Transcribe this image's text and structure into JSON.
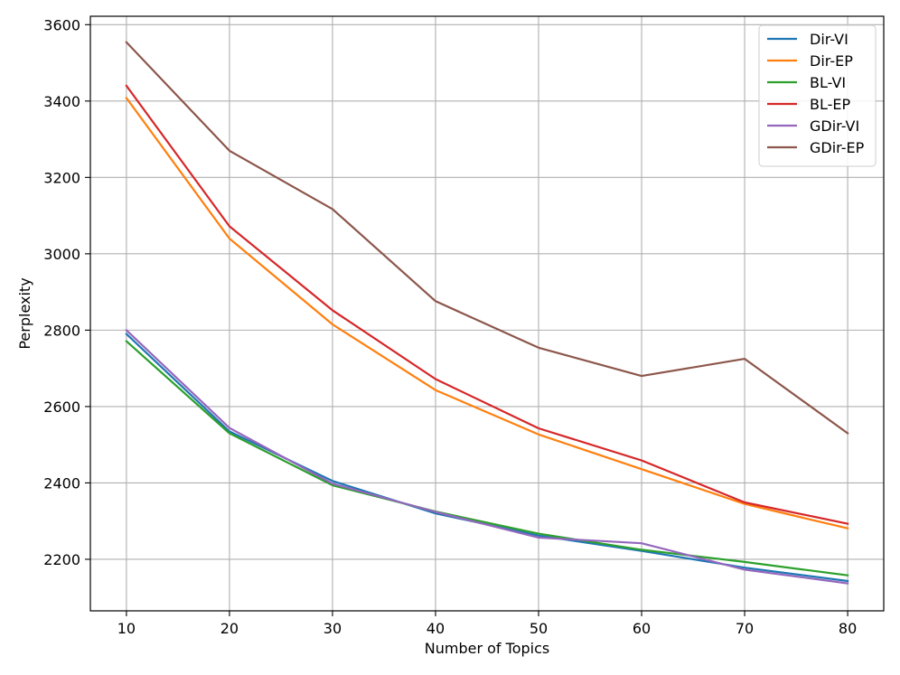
{
  "chart_data": {
    "type": "line",
    "title": "",
    "xlabel": "Number of Topics",
    "ylabel": "Perplexity",
    "xlim": [
      6.5,
      83.5
    ],
    "ylim": [
      2065,
      3622
    ],
    "xticks": [
      10,
      20,
      30,
      40,
      50,
      60,
      70,
      80
    ],
    "yticks": [
      2200,
      2400,
      2600,
      2800,
      3000,
      3200,
      3400,
      3600
    ],
    "grid": true,
    "legend_position": "top-right",
    "x": [
      10,
      20,
      30,
      40,
      50,
      60,
      70,
      80
    ],
    "series": [
      {
        "name": "Dir-VI",
        "color": "#1f77b4",
        "values": [
          2790,
          2535,
          2405,
          2320,
          2262,
          2222,
          2178,
          2143
        ]
      },
      {
        "name": "Dir-EP",
        "color": "#ff7f0e",
        "values": [
          3408,
          3040,
          2815,
          2643,
          2527,
          2436,
          2345,
          2281
        ]
      },
      {
        "name": "BL-VI",
        "color": "#2ca02c",
        "values": [
          2771,
          2530,
          2394,
          2325,
          2267,
          2225,
          2193,
          2158
        ]
      },
      {
        "name": "BL-EP",
        "color": "#d62728",
        "values": [
          3440,
          3072,
          2852,
          2672,
          2543,
          2459,
          2349,
          2293
        ]
      },
      {
        "name": "GDir-VI",
        "color": "#9467bd",
        "values": [
          2800,
          2544,
          2398,
          2324,
          2257,
          2242,
          2173,
          2137
        ]
      },
      {
        "name": "GDir-EP",
        "color": "#8c564b",
        "values": [
          3554,
          3270,
          3117,
          2876,
          2754,
          2680,
          2725,
          2530
        ]
      }
    ]
  }
}
